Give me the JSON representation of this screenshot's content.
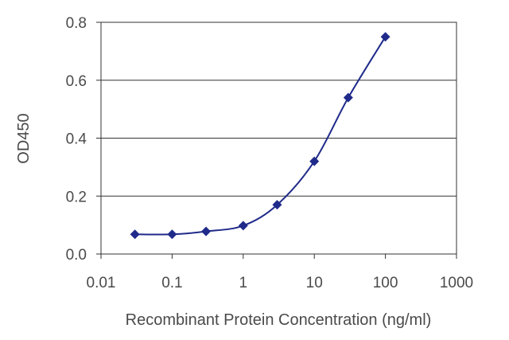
{
  "chart_data": {
    "type": "line",
    "title": "",
    "xlabel": "Recombinant Protein Concentration (ng/ml)",
    "ylabel": "OD450",
    "x_scale": "log",
    "xlim": [
      0.01,
      1000
    ],
    "ylim": [
      0.0,
      0.8
    ],
    "x_ticks": [
      "0.01",
      "0.1",
      "1",
      "10",
      "100",
      "1000"
    ],
    "y_ticks": [
      "0.0",
      "0.2",
      "0.4",
      "0.6",
      "0.8"
    ],
    "grid": "horizontal",
    "series": [
      {
        "color": "#1f2a8a",
        "marker": "diamond",
        "x": [
          0.03,
          0.1,
          0.3,
          1,
          3,
          10,
          30,
          100
        ],
        "y": [
          0.068,
          0.068,
          0.078,
          0.098,
          0.17,
          0.32,
          0.54,
          0.75
        ]
      }
    ]
  }
}
